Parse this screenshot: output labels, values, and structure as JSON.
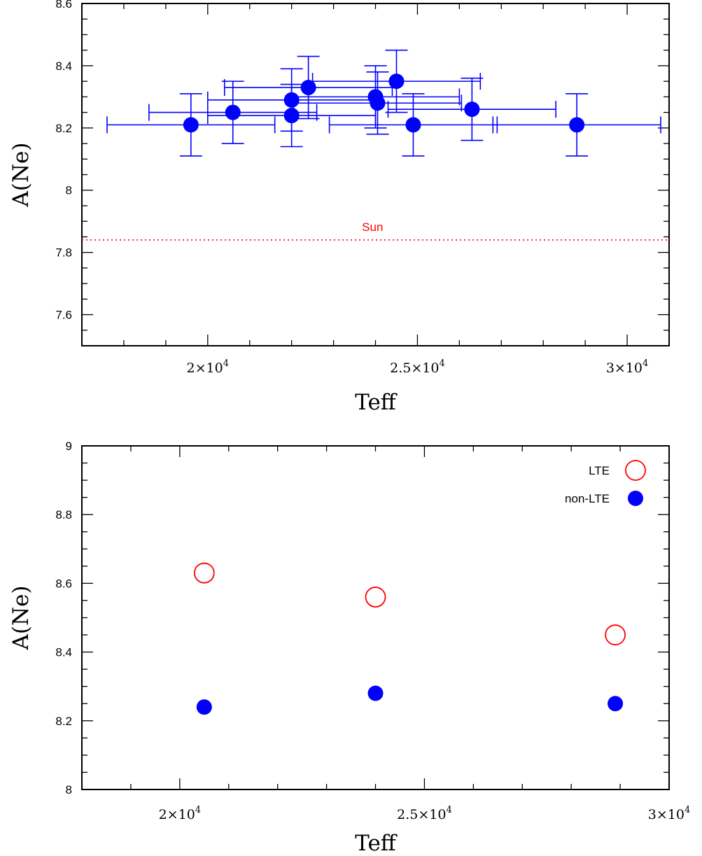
{
  "chart_data": [
    {
      "type": "scatter",
      "title": "",
      "xlabel": "Teff",
      "ylabel": "A(Ne)",
      "xlim": [
        17000,
        31000
      ],
      "ylim": [
        7.5,
        8.6
      ],
      "x_tick_labels": [
        {
          "value": 20000,
          "mantissa": "2",
          "exp": "4"
        },
        {
          "value": 25000,
          "mantissa": "2.5",
          "exp": "4"
        },
        {
          "value": 30000,
          "mantissa": "3",
          "exp": "4"
        }
      ],
      "y_ticks": [
        "7.6",
        "7.8",
        "8",
        "8.2",
        "8.4",
        "8.6"
      ],
      "grid": false,
      "reference_line": {
        "y": 7.84,
        "label": "Sun",
        "color": "#ff0000",
        "style": "dotted"
      },
      "series": [
        {
          "color": "#0000ff",
          "points": [
            {
              "x": 19600,
              "y": 8.21,
              "xerr": 2000,
              "yerr": 0.1
            },
            {
              "x": 20600,
              "y": 8.25,
              "xerr": 2000,
              "yerr": 0.1
            },
            {
              "x": 22000,
              "y": 8.29,
              "xerr": 2000,
              "yerr": 0.1
            },
            {
              "x": 22000,
              "y": 8.24,
              "xerr": 2000,
              "yerr": 0.1
            },
            {
              "x": 22400,
              "y": 8.33,
              "xerr": 2000,
              "yerr": 0.1
            },
            {
              "x": 24000,
              "y": 8.3,
              "xerr": 2000,
              "yerr": 0.1
            },
            {
              "x": 24050,
              "y": 8.28,
              "xerr": 2000,
              "yerr": 0.1
            },
            {
              "x": 24500,
              "y": 8.35,
              "xerr": 2000,
              "yerr": 0.1
            },
            {
              "x": 24900,
              "y": 8.21,
              "xerr": 2000,
              "yerr": 0.1
            },
            {
              "x": 26300,
              "y": 8.26,
              "xerr": 2000,
              "yerr": 0.1
            },
            {
              "x": 28800,
              "y": 8.21,
              "xerr": 2000,
              "yerr": 0.1
            }
          ]
        }
      ]
    },
    {
      "type": "scatter",
      "title": "",
      "xlabel": "Teff",
      "ylabel": "A(Ne)",
      "xlim": [
        18000,
        30000
      ],
      "ylim": [
        8.0,
        9.0
      ],
      "x_tick_labels": [
        {
          "value": 20000,
          "mantissa": "2",
          "exp": "4"
        },
        {
          "value": 25000,
          "mantissa": "2.5",
          "exp": "4"
        },
        {
          "value": 30000,
          "mantissa": "3",
          "exp": "4"
        }
      ],
      "y_ticks": [
        "8",
        "8.2",
        "8.4",
        "8.6",
        "8.8",
        "9"
      ],
      "grid": false,
      "legend_position": "top-right",
      "series": [
        {
          "name": "LTE",
          "marker": "open-circle",
          "color": "#ff0000",
          "x": [
            20500,
            24000,
            28900
          ],
          "y": [
            8.63,
            8.56,
            8.45
          ]
        },
        {
          "name": "non-LTE",
          "marker": "filled-circle",
          "color": "#0000ff",
          "x": [
            20500,
            24000,
            28900
          ],
          "y": [
            8.24,
            8.28,
            8.25
          ]
        }
      ]
    }
  ]
}
